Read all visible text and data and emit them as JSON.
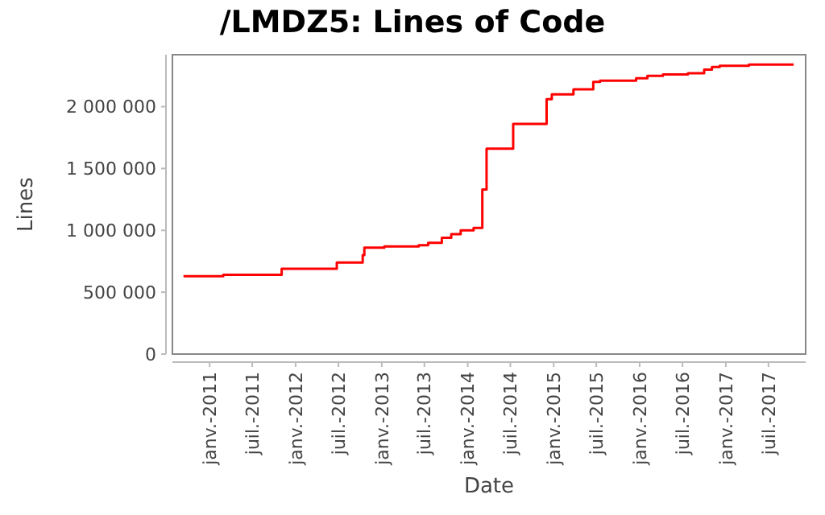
{
  "chart_data": {
    "type": "step",
    "title": "/LMDZ5: Lines of Code",
    "xlabel": "Date",
    "ylabel": "Lines",
    "grid": false,
    "marker": "none",
    "x": [
      "2010-09-12",
      "2011-02-28",
      "2011-11-03",
      "2012-06-24",
      "2012-10-12",
      "2012-10-19",
      "2013-01-12",
      "2013-06-07",
      "2013-07-17",
      "2013-09-13",
      "2013-10-23",
      "2013-12-02",
      "2014-01-26",
      "2014-03-04",
      "2014-03-22",
      "2014-07-13",
      "2014-12-02",
      "2014-12-24",
      "2015-02-10",
      "2015-03-26",
      "2015-06-18",
      "2015-07-17",
      "2015-12-17",
      "2016-02-03",
      "2016-04-09",
      "2016-07-24",
      "2016-10-01",
      "2016-11-03",
      "2016-12-06",
      "2017-04-09",
      "2017-10-16"
    ],
    "series": [
      {
        "color": "#ff0000",
        "values": [
          630000,
          640000,
          690000,
          740000,
          800000,
          860000,
          870000,
          880000,
          900000,
          940000,
          970000,
          1000000,
          1020000,
          1330000,
          1660000,
          1860000,
          2060000,
          2100000,
          2100000,
          2140000,
          2200000,
          2210000,
          2230000,
          2250000,
          2260000,
          2270000,
          2300000,
          2320000,
          2330000,
          2340000,
          2340000
        ]
      }
    ],
    "xlim": [
      "2010-07-27",
      "2017-12-06"
    ],
    "xticks": [
      {
        "value": "2011-01-01",
        "label": "janv.-2011"
      },
      {
        "value": "2011-07-01",
        "label": "juil.-2011"
      },
      {
        "value": "2012-01-01",
        "label": "janv.-2012"
      },
      {
        "value": "2012-07-01",
        "label": "juil.-2012"
      },
      {
        "value": "2013-01-01",
        "label": "janv.-2013"
      },
      {
        "value": "2013-07-01",
        "label": "juil.-2013"
      },
      {
        "value": "2014-01-01",
        "label": "janv.-2014"
      },
      {
        "value": "2014-07-01",
        "label": "juil.-2014"
      },
      {
        "value": "2015-01-01",
        "label": "janv.-2015"
      },
      {
        "value": "2015-07-01",
        "label": "juil.-2015"
      },
      {
        "value": "2016-01-01",
        "label": "janv.-2016"
      },
      {
        "value": "2016-07-01",
        "label": "juil.-2016"
      },
      {
        "value": "2017-01-01",
        "label": "janv.-2017"
      },
      {
        "value": "2017-07-01",
        "label": "juil.-2017"
      }
    ],
    "ylim": [
      0,
      2420000
    ],
    "yticks": [
      0,
      {
        "value": 500000,
        "label": "500 000"
      },
      {
        "value": 1000000,
        "label": "1 000 000"
      },
      {
        "value": 1500000,
        "label": "1 500 000"
      },
      {
        "value": 2000000,
        "label": "2 000 000"
      }
    ]
  }
}
